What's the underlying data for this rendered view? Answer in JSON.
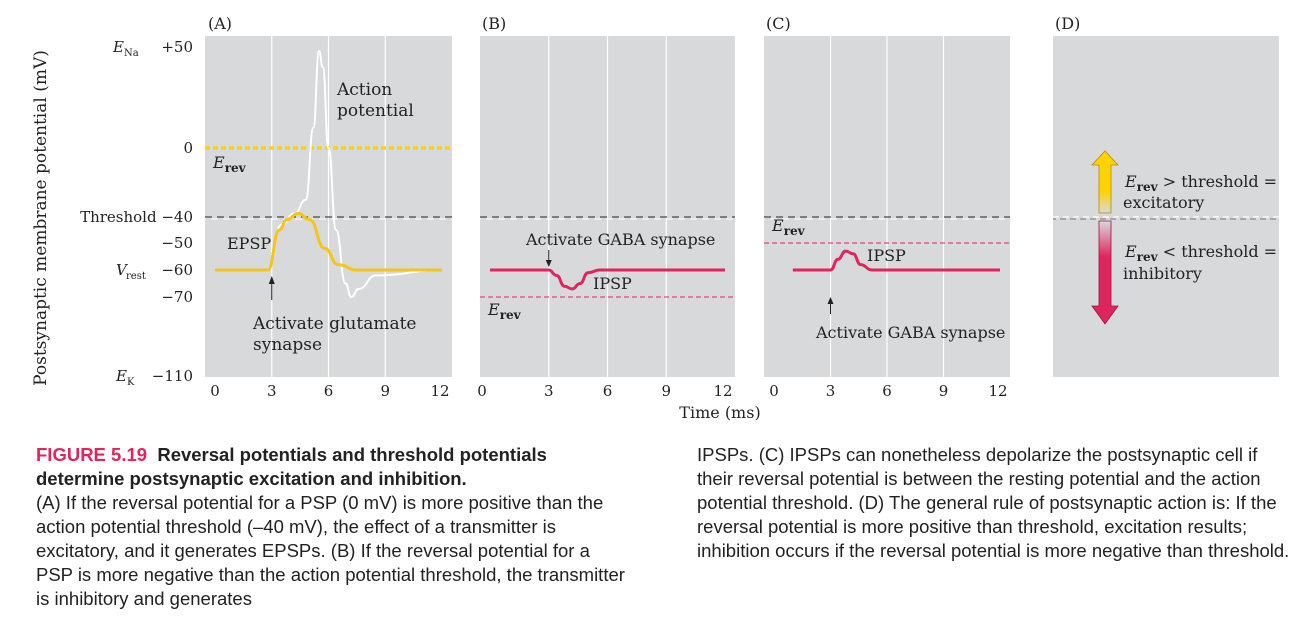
{
  "chart_data": {
    "type": "line",
    "ylabel": "Postsynaptic membrane potential (mV)",
    "xlabel": "Time (ms)",
    "ylim": [
      -110,
      55
    ],
    "xlim": [
      0,
      12
    ],
    "x_ticks": [
      "0",
      "3",
      "6",
      "9",
      "12"
    ],
    "y_ticks": [
      {
        "label": "+50",
        "value": 50,
        "prefix": "E",
        "sub": "Na"
      },
      {
        "label": "0",
        "value": 0,
        "prefix": "",
        "sub": ""
      },
      {
        "label": "Threshold −40",
        "value": -40,
        "prefix": "",
        "sub": ""
      },
      {
        "label": "−50",
        "value": -50,
        "prefix": "",
        "sub": ""
      },
      {
        "label": "−60",
        "value": -60,
        "prefix": "V",
        "sub": "rest"
      },
      {
        "label": "−70",
        "value": -70,
        "prefix": "",
        "sub": ""
      },
      {
        "label": "−110",
        "value": -110,
        "prefix": "E",
        "sub": "K"
      }
    ],
    "panels": [
      {
        "id": "A",
        "label": "(A)",
        "erev": {
          "value": 0,
          "prefix": "E",
          "sub": "rev"
        },
        "series": [
          {
            "kind": "action-potential",
            "points": [
              [
                0,
                -60
              ],
              [
                2.8,
                -60
              ],
              [
                3.5,
                -43
              ],
              [
                4.2,
                -38
              ],
              [
                4.8,
                -30
              ],
              [
                5.2,
                10
              ],
              [
                5.5,
                48
              ],
              [
                5.7,
                40
              ],
              [
                6.0,
                0
              ],
              [
                6.4,
                -45
              ],
              [
                6.9,
                -65
              ],
              [
                7.2,
                -70
              ],
              [
                7.6,
                -67
              ],
              [
                8.5,
                -62
              ],
              [
                12,
                -60
              ]
            ]
          },
          {
            "kind": "epsp",
            "points": [
              [
                0,
                -60
              ],
              [
                2.8,
                -60
              ],
              [
                3.4,
                -45
              ],
              [
                3.8,
                -41
              ],
              [
                4.4,
                -38
              ],
              [
                5.0,
                -41
              ],
              [
                5.8,
                -52
              ],
              [
                6.5,
                -58
              ],
              [
                7.5,
                -60
              ],
              [
                12,
                -60
              ]
            ]
          }
        ],
        "annotations": [
          "Action",
          "potential",
          "EPSP",
          "Activate glutamate",
          "synapse"
        ],
        "arrow_at_ms": 3
      },
      {
        "id": "B",
        "label": "(B)",
        "erev": {
          "value": -70,
          "prefix": "E",
          "sub": "rev"
        },
        "series": [
          {
            "kind": "ipsp",
            "points": [
              [
                0,
                -60
              ],
              [
                3.0,
                -60
              ],
              [
                3.4,
                -62
              ],
              [
                3.8,
                -66
              ],
              [
                4.2,
                -67
              ],
              [
                4.6,
                -65
              ],
              [
                5.0,
                -61
              ],
              [
                5.6,
                -60
              ],
              [
                12,
                -60
              ]
            ]
          }
        ],
        "annotations": [
          "Activate GABA synapse",
          "IPSP"
        ],
        "arrow_at_ms": 3
      },
      {
        "id": "C",
        "label": "(C)",
        "erev": {
          "value": -50,
          "prefix": "E",
          "sub": "rev"
        },
        "series": [
          {
            "kind": "ipsp",
            "points": [
              [
                1,
                -60
              ],
              [
                3.0,
                -60
              ],
              [
                3.4,
                -56
              ],
              [
                3.8,
                -53
              ],
              [
                4.2,
                -54
              ],
              [
                4.6,
                -58
              ],
              [
                5.2,
                -60
              ],
              [
                12,
                -60
              ]
            ]
          }
        ],
        "annotations": [
          "IPSP",
          "Activate GABA synapse"
        ],
        "arrow_at_ms": 3
      },
      {
        "id": "D",
        "label": "(D)",
        "annotations_up": {
          "prefix": "E",
          "sub": "rev",
          "rest": " > threshold =",
          "line2": "excitatory"
        },
        "annotations_down": {
          "prefix": "E",
          "sub": "rev",
          "rest": " < threshold =",
          "line2": "inhibitory"
        }
      }
    ],
    "threshold": -40,
    "grid": true,
    "colors": {
      "panel_bg": "#d8d9db",
      "grid": "#ffffff",
      "erev_yellow": "#ffd300",
      "epsp": "#f5c518",
      "ipsp": "#e0245e",
      "ap": "#ffffff",
      "erev_dash_red": "#e0245e"
    }
  },
  "caption": {
    "figure_number": "FIGURE 5.19",
    "title": "Reversal potentials and threshold potentials determine postsynaptic excitation and inhibition.",
    "left_text": "(A) If the reversal potential for a PSP (0 mV) is more positive than the action potential threshold (–40 mV), the effect of a transmitter is excitatory, and it generates EPSPs. (B) If the reversal potential for a PSP is more negative than the action potential threshold, the transmitter is inhibitory and generates",
    "right_text": "IPSPs. (C) IPSPs can nonetheless depolarize the postsynaptic cell if their reversal potential is between the resting potential and the action potential threshold. (D) The general rule of postsynaptic action is: If the reversal potential is more positive than threshold, excitation results; inhibition occurs if the reversal potential is more negative than threshold."
  }
}
